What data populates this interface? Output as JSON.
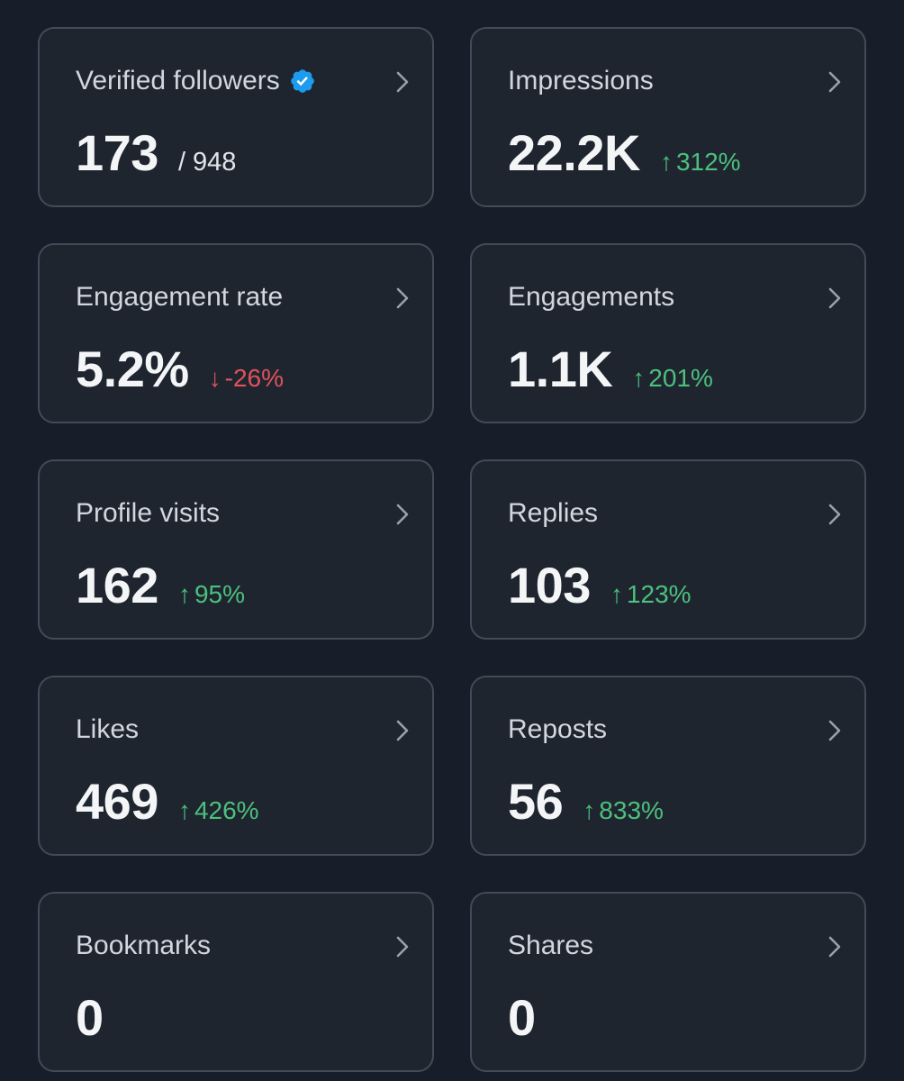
{
  "cards": [
    {
      "title": "Verified followers",
      "value": "173",
      "total": "/ 948",
      "verified": true
    },
    {
      "title": "Impressions",
      "value": "22.2K",
      "change_arrow": "↑",
      "change": "312%",
      "direction": "up"
    },
    {
      "title": "Engagement rate",
      "value": "5.2%",
      "change_arrow": "↓",
      "change": "-26%",
      "direction": "down"
    },
    {
      "title": "Engagements",
      "value": "1.1K",
      "change_arrow": "↑",
      "change": "201%",
      "direction": "up"
    },
    {
      "title": "Profile visits",
      "value": "162",
      "change_arrow": "↑",
      "change": "95%",
      "direction": "up"
    },
    {
      "title": "Replies",
      "value": "103",
      "change_arrow": "↑",
      "change": "123%",
      "direction": "up"
    },
    {
      "title": "Likes",
      "value": "469",
      "change_arrow": "↑",
      "change": "426%",
      "direction": "up"
    },
    {
      "title": "Reposts",
      "value": "56",
      "change_arrow": "↑",
      "change": "833%",
      "direction": "up"
    },
    {
      "title": "Bookmarks",
      "value": "0"
    },
    {
      "title": "Shares",
      "value": "0"
    }
  ],
  "colors": {
    "background": "#171d29",
    "card": "#1f252f",
    "border": "#434b58",
    "up": "#4cc07d",
    "down": "#e0525c",
    "verified": "#1d9bf0"
  },
  "icons": {
    "verified": "verified-badge-icon",
    "chevron": "chevron-right-icon"
  }
}
